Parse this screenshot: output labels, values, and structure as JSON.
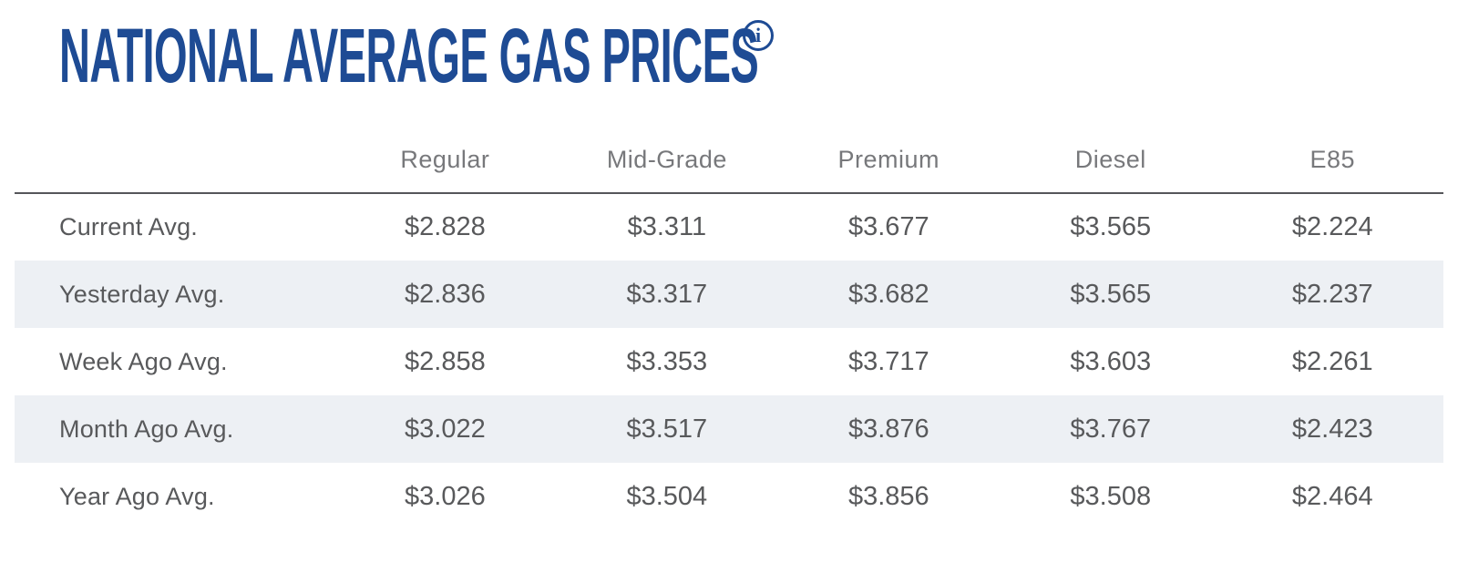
{
  "page": {
    "title": "NATIONAL AVERAGE GAS PRICES"
  },
  "colors": {
    "title_blue": "#1e4b94",
    "stripe": "#edf0f4",
    "header_gray": "#77787b",
    "value_gray": "#58595b",
    "divider": "#55565a"
  },
  "table": {
    "columns": [
      "Regular",
      "Mid-Grade",
      "Premium",
      "Diesel",
      "E85"
    ],
    "rows": [
      {
        "label": "Current Avg.",
        "values": [
          "$2.828",
          "$3.311",
          "$3.677",
          "$3.565",
          "$2.224"
        ]
      },
      {
        "label": "Yesterday Avg.",
        "values": [
          "$2.836",
          "$3.317",
          "$3.682",
          "$3.565",
          "$2.237"
        ]
      },
      {
        "label": "Week Ago Avg.",
        "values": [
          "$2.858",
          "$3.353",
          "$3.717",
          "$3.603",
          "$2.261"
        ]
      },
      {
        "label": "Month Ago Avg.",
        "values": [
          "$3.022",
          "$3.517",
          "$3.876",
          "$3.767",
          "$2.423"
        ]
      },
      {
        "label": "Year Ago Avg.",
        "values": [
          "$3.026",
          "$3.504",
          "$3.856",
          "$3.508",
          "$2.464"
        ]
      }
    ]
  }
}
